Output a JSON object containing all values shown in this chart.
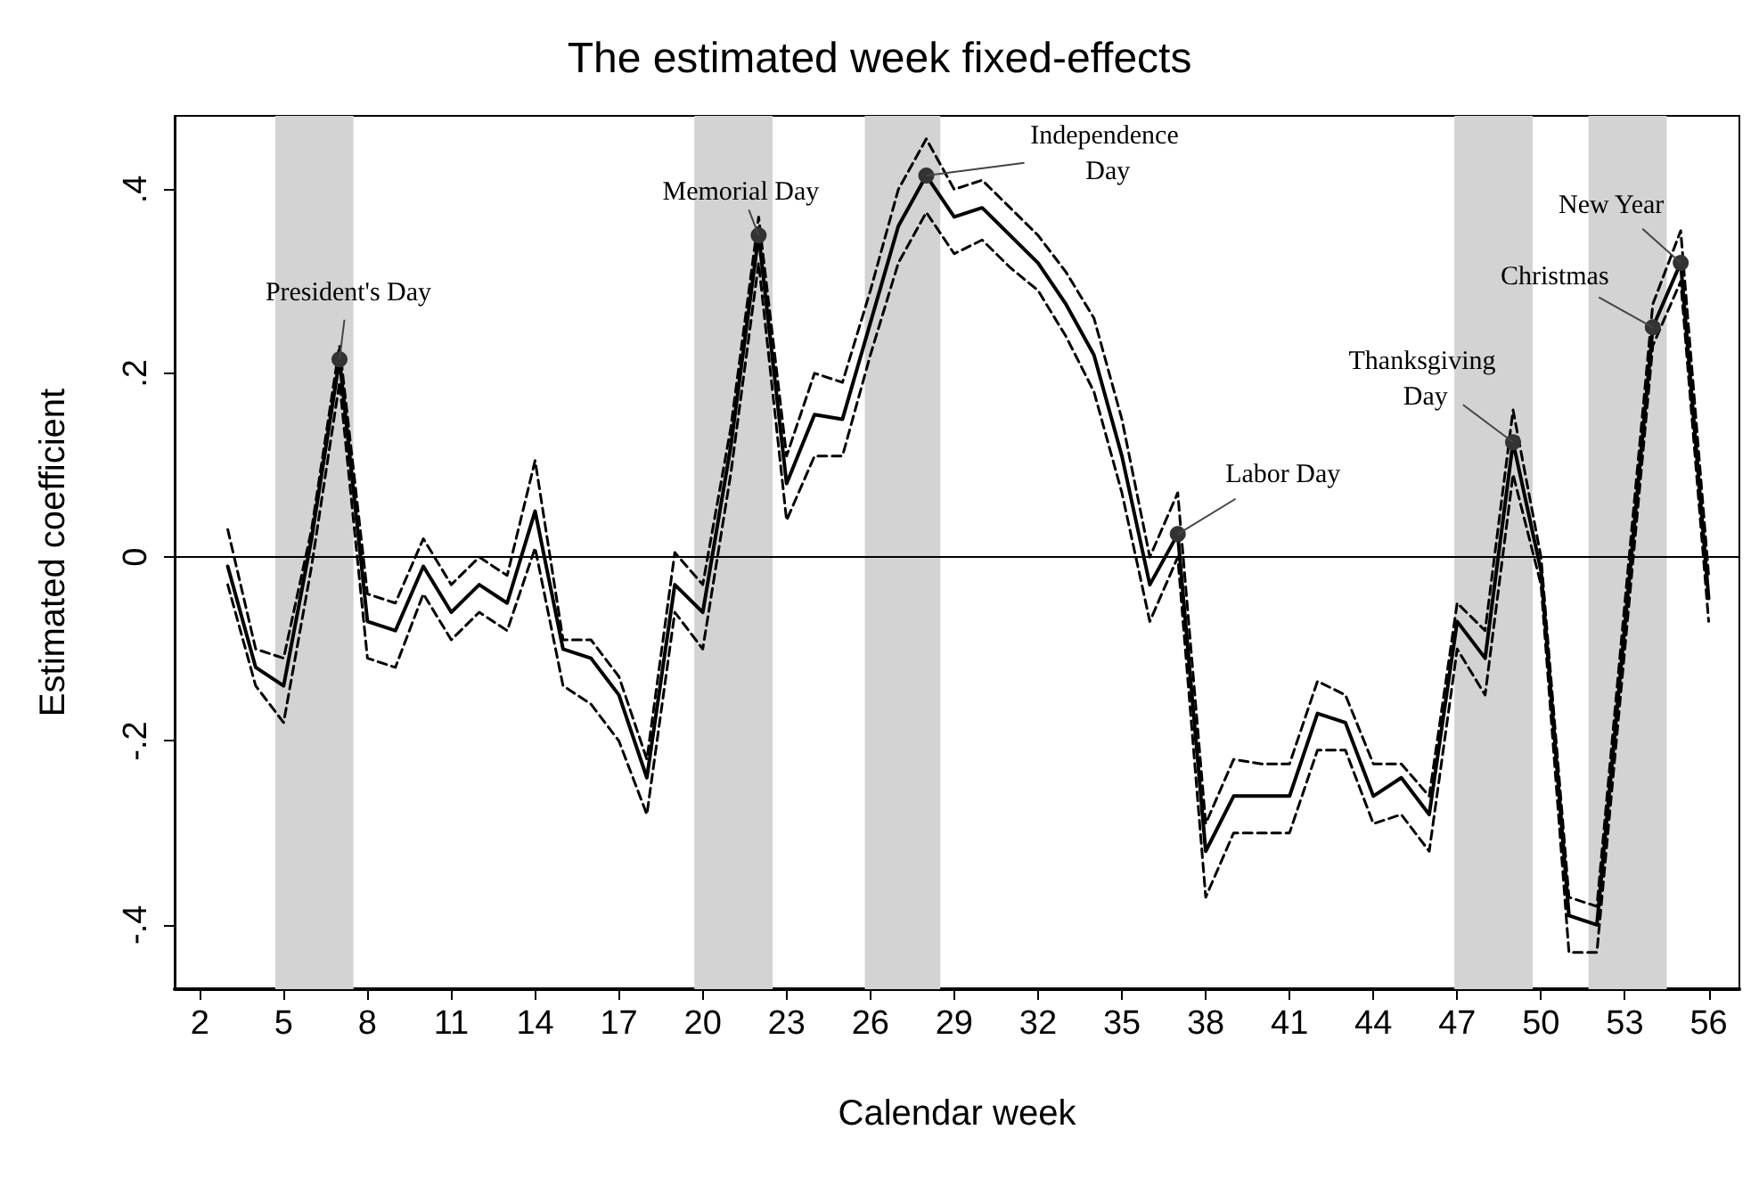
{
  "chart_data": {
    "type": "line",
    "title": "The estimated week fixed-effects",
    "xlabel": "Calendar week",
    "ylabel": "Estimated coefficient",
    "x": [
      3,
      4,
      5,
      6,
      7,
      8,
      9,
      10,
      11,
      12,
      13,
      14,
      15,
      16,
      17,
      18,
      19,
      20,
      21,
      22,
      23,
      24,
      25,
      26,
      27,
      28,
      29,
      30,
      31,
      32,
      33,
      34,
      35,
      36,
      37,
      38,
      39,
      40,
      41,
      42,
      43,
      44,
      45,
      46,
      47,
      48,
      49,
      50,
      51,
      52,
      53,
      54,
      55,
      56
    ],
    "series": [
      {
        "color": "#000000",
        "line_style": "solid",
        "values": [
          -0.01,
          -0.12,
          -0.14,
          0.02,
          0.215,
          -0.07,
          -0.08,
          -0.01,
          -0.06,
          -0.03,
          -0.05,
          0.05,
          -0.1,
          -0.11,
          -0.15,
          -0.24,
          -0.03,
          -0.06,
          0.12,
          0.35,
          0.08,
          0.155,
          0.15,
          0.255,
          0.36,
          0.415,
          0.37,
          0.38,
          0.35,
          0.32,
          0.275,
          0.22,
          0.11,
          -0.03,
          0.025,
          -0.32,
          -0.26,
          -0.26,
          -0.26,
          -0.17,
          -0.18,
          -0.26,
          -0.24,
          -0.28,
          -0.07,
          -0.11,
          0.125,
          -0.015,
          -0.39,
          -0.4,
          -0.075,
          0.25,
          0.32,
          -0.045
        ]
      },
      {
        "color": "#000000",
        "line_style": "dashed",
        "values": [
          0.03,
          -0.1,
          -0.11,
          0.03,
          0.23,
          -0.04,
          -0.05,
          0.02,
          -0.03,
          0,
          -0.02,
          0.105,
          -0.09,
          -0.09,
          -0.13,
          -0.22,
          0.005,
          -0.03,
          0.14,
          0.37,
          0.11,
          0.2,
          0.19,
          0.29,
          0.4,
          0.455,
          0.4,
          0.41,
          0.38,
          0.35,
          0.31,
          0.26,
          0.15,
          0,
          0.07,
          -0.29,
          -0.22,
          -0.225,
          -0.225,
          -0.135,
          -0.15,
          -0.225,
          -0.225,
          -0.26,
          -0.05,
          -0.08,
          0.16,
          0,
          -0.37,
          -0.38,
          -0.05,
          0.275,
          0.355,
          -0.02
        ]
      },
      {
        "color": "#000000",
        "line_style": "dashed",
        "values": [
          -0.03,
          -0.14,
          -0.18,
          -0.01,
          0.19,
          -0.11,
          -0.12,
          -0.04,
          -0.09,
          -0.06,
          -0.08,
          0.01,
          -0.14,
          -0.16,
          -0.2,
          -0.28,
          -0.06,
          -0.1,
          0.09,
          0.32,
          0.04,
          0.11,
          0.11,
          0.22,
          0.32,
          0.375,
          0.33,
          0.345,
          0.315,
          0.29,
          0.24,
          0.18,
          0.07,
          -0.07,
          0,
          -0.37,
          -0.3,
          -0.3,
          -0.3,
          -0.21,
          -0.21,
          -0.29,
          -0.28,
          -0.32,
          -0.1,
          -0.15,
          0.09,
          -0.03,
          -0.43,
          -0.43,
          -0.1,
          0.23,
          0.3,
          -0.07
        ]
      }
    ],
    "xlim": [
      1.1,
      57.1
    ],
    "xticks": [
      2,
      5,
      8,
      11,
      14,
      17,
      20,
      23,
      26,
      29,
      32,
      35,
      38,
      41,
      44,
      47,
      50,
      53,
      56
    ],
    "ylim": [
      -0.47,
      0.48
    ],
    "yticks": [
      {
        "value": -0.4,
        "label": "-.4"
      },
      {
        "value": -0.2,
        "label": "-.2"
      },
      {
        "value": 0,
        "label": "0"
      },
      {
        "value": 0.2,
        "label": ".2"
      },
      {
        "value": 0.4,
        "label": ".4"
      }
    ],
    "grid": false,
    "marker": "none",
    "ref_lines": [
      {
        "axis": "y",
        "value": 0,
        "color": "#000000",
        "line_style": "solid"
      }
    ],
    "bands": [
      {
        "axis": "x",
        "from": 4.7,
        "to": 7.5,
        "color": "#d3d3d3"
      },
      {
        "axis": "x",
        "from": 19.7,
        "to": 22.5,
        "color": "#d3d3d3"
      },
      {
        "axis": "x",
        "from": 25.8,
        "to": 28.5,
        "color": "#d3d3d3"
      },
      {
        "axis": "x",
        "from": 46.9,
        "to": 49.7,
        "color": "#d3d3d3"
      },
      {
        "axis": "x",
        "from": 51.7,
        "to": 54.5,
        "color": "#d3d3d3"
      }
    ],
    "annotations": [
      {
        "text": "President's Day",
        "x": 7,
        "y": 0.215
      },
      {
        "text": "Memorial Day",
        "x": 22,
        "y": 0.35
      },
      {
        "text": "Independence Day",
        "x": 28,
        "y": 0.415
      },
      {
        "text": "Labor Day",
        "x": 37,
        "y": 0.025
      },
      {
        "text": "Thanksgiving Day",
        "x": 49,
        "y": 0.125
      },
      {
        "text": "Christmas",
        "x": 54,
        "y": 0.25
      },
      {
        "text": "New Year",
        "x": 55,
        "y": 0.32
      }
    ]
  }
}
